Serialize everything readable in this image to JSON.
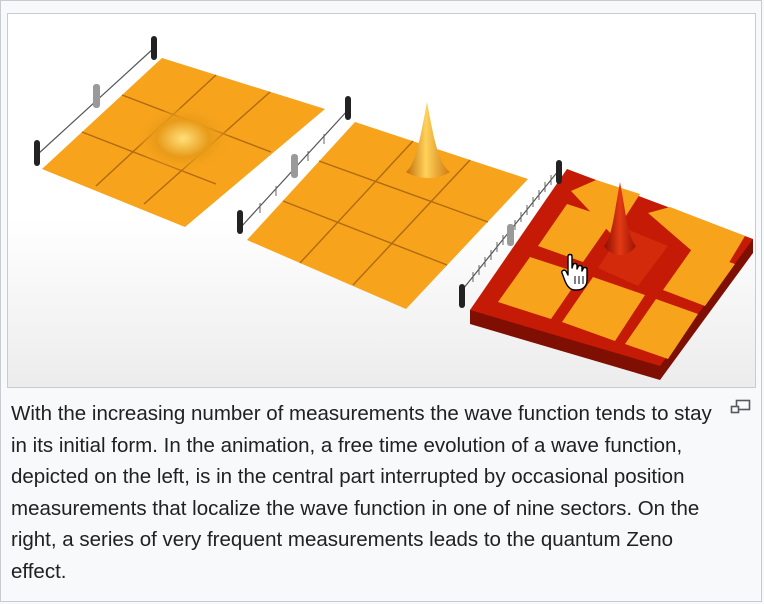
{
  "figure": {
    "image_description_alt": "",
    "caption": "With the increasing number of measurements the wave function tends to stay in its initial form. In the animation, a free time evolution of a wave function, depicted on the left, is in the central part interrupted by occasional position measurements that localize the wave function in one of nine sectors. On the right, a series of very frequent measurements leads to the quantum Zeno effect.",
    "enlarge_icon": "magnify-clip-icon"
  },
  "colors": {
    "plate_orange": "#f7a31c",
    "plate_grid": "#b06a10",
    "zeno_red": "#c41a06",
    "background": "#f8f9fa",
    "text": "#202122"
  },
  "cursor": {
    "icon": "hand-pointer-icon"
  }
}
